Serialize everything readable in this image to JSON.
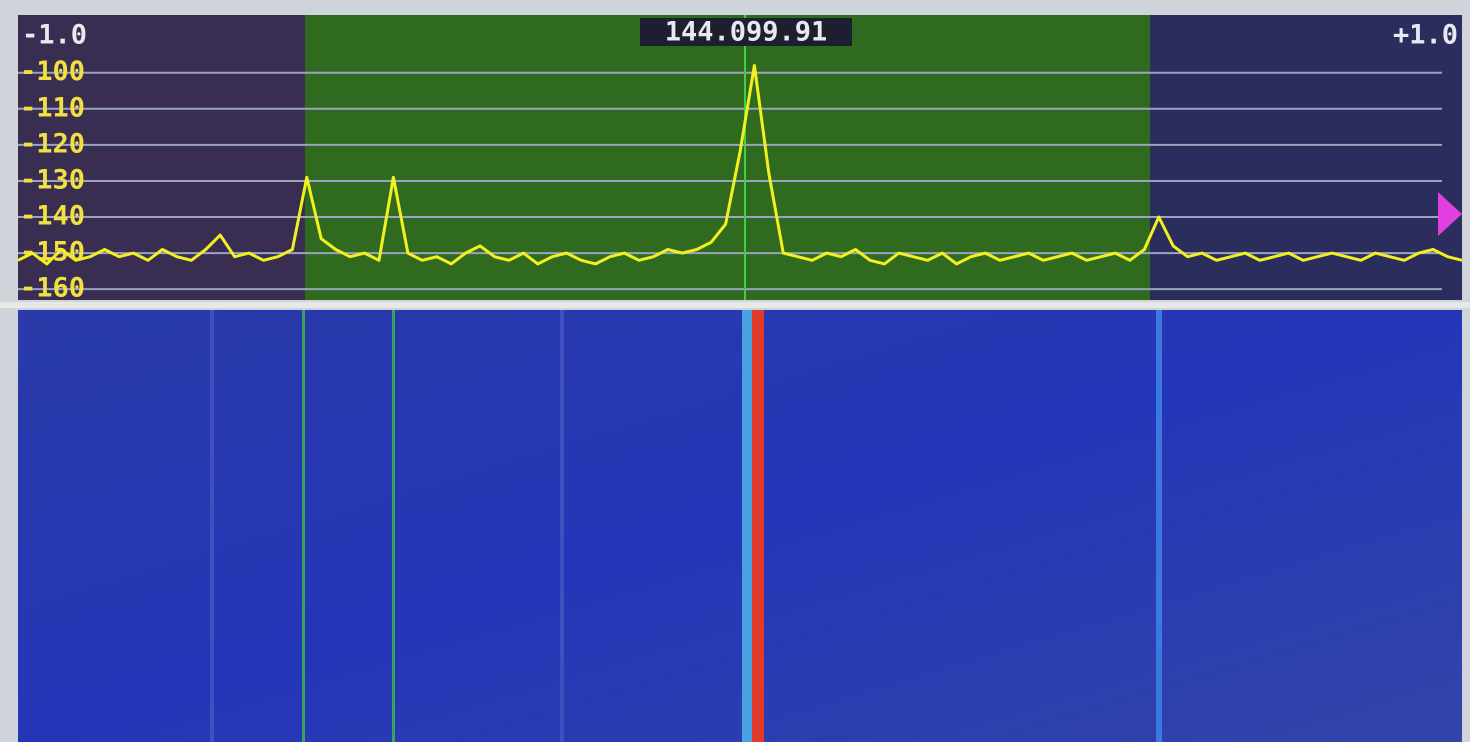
{
  "chart_data": {
    "type": "line",
    "title": "144.099.91",
    "x": [
      -1.0,
      -0.98,
      -0.96,
      -0.94,
      -0.92,
      -0.9,
      -0.88,
      -0.86,
      -0.84,
      -0.82,
      -0.8,
      -0.78,
      -0.76,
      -0.74,
      -0.72,
      -0.7,
      -0.68,
      -0.66,
      -0.64,
      -0.62,
      -0.6,
      -0.58,
      -0.56,
      -0.54,
      -0.52,
      -0.5,
      -0.48,
      -0.46,
      -0.44,
      -0.42,
      -0.4,
      -0.38,
      -0.36,
      -0.34,
      -0.32,
      -0.3,
      -0.28,
      -0.26,
      -0.24,
      -0.22,
      -0.2,
      -0.18,
      -0.16,
      -0.14,
      -0.12,
      -0.1,
      -0.08,
      -0.06,
      -0.04,
      -0.02,
      0.0,
      0.02,
      0.04,
      0.06,
      0.08,
      0.1,
      0.12,
      0.14,
      0.16,
      0.18,
      0.2,
      0.22,
      0.24,
      0.26,
      0.28,
      0.3,
      0.32,
      0.34,
      0.36,
      0.38,
      0.4,
      0.42,
      0.44,
      0.46,
      0.48,
      0.5,
      0.52,
      0.54,
      0.56,
      0.58,
      0.6,
      0.62,
      0.64,
      0.66,
      0.68,
      0.7,
      0.72,
      0.74,
      0.76,
      0.78,
      0.8,
      0.82,
      0.84,
      0.86,
      0.88,
      0.9,
      0.92,
      0.94,
      0.96,
      0.98,
      1.0
    ],
    "series": [
      {
        "color": "#f2f020",
        "values": [
          -152,
          -150,
          -153,
          -149,
          -152,
          -151,
          -149,
          -151,
          -150,
          -152,
          -149,
          -151,
          -152,
          -149,
          -145,
          -151,
          -150,
          -152,
          -151,
          -149,
          -129,
          -146,
          -149,
          -151,
          -150,
          -152,
          -129,
          -150,
          -152,
          -151,
          -153,
          -150,
          -148,
          -151,
          -152,
          -150,
          -153,
          -151,
          -150,
          -152,
          -153,
          -151,
          -150,
          -152,
          -151,
          -149,
          -150,
          -149,
          -147,
          -142,
          -122,
          -98,
          -128,
          -150,
          -151,
          -152,
          -150,
          -151,
          -149,
          -152,
          -153,
          -150,
          -151,
          -152,
          -150,
          -153,
          -151,
          -150,
          -152,
          -151,
          -150,
          -152,
          -151,
          -150,
          -152,
          -151,
          -150,
          -152,
          -149,
          -140,
          -148,
          -151,
          -150,
          -152,
          -151,
          -150,
          -152,
          -151,
          -150,
          -152,
          -151,
          -150,
          -151,
          -152,
          -150,
          -151,
          -152,
          -150,
          -149,
          -151,
          -152
        ]
      }
    ],
    "xlim": [
      -1.0,
      1.0
    ],
    "xticks": [
      {
        "value": -1.0,
        "label": "-1.0"
      },
      {
        "value": 1.0,
        "label": "+1.0"
      }
    ],
    "ylim": [
      -163,
      -84
    ],
    "yticks": [
      -100,
      -110,
      -120,
      -130,
      -140,
      -150,
      -160
    ],
    "grid": true
  }
}
